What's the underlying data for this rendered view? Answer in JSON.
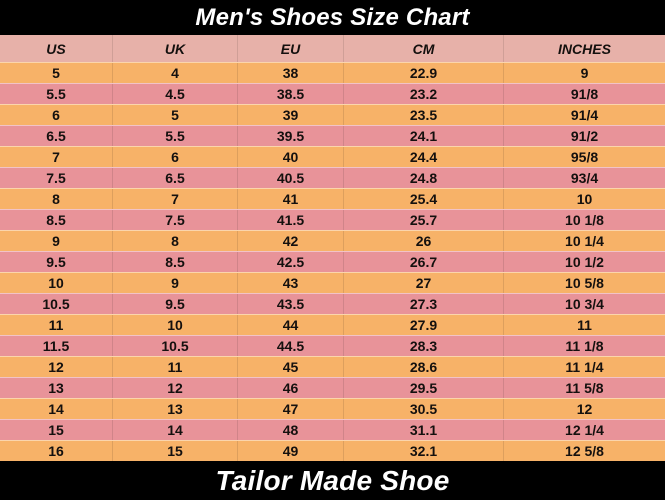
{
  "title": {
    "text": "Men's Shoes Size Chart"
  },
  "footer": {
    "text": "Tailor Made Shoe"
  },
  "colors": {
    "bar_bg": "#000000",
    "bar_text": "#ffffff",
    "header_row_bg": "#e7b1a9",
    "orange_row": "#f7b268",
    "pink_row": "#e89399",
    "cell_text": "#14100e"
  },
  "table": {
    "columns": [
      "US",
      "UK",
      "EU",
      "CM",
      "INCHES"
    ],
    "rows": [
      [
        "5",
        "4",
        "38",
        "22.9",
        "9"
      ],
      [
        "5.5",
        "4.5",
        "38.5",
        "23.2",
        "91/8"
      ],
      [
        "6",
        "5",
        "39",
        "23.5",
        "91/4"
      ],
      [
        "6.5",
        "5.5",
        "39.5",
        "24.1",
        "91/2"
      ],
      [
        "7",
        "6",
        "40",
        "24.4",
        "95/8"
      ],
      [
        "7.5",
        "6.5",
        "40.5",
        "24.8",
        "93/4"
      ],
      [
        "8",
        "7",
        "41",
        "25.4",
        "10"
      ],
      [
        "8.5",
        "7.5",
        "41.5",
        "25.7",
        "10 1/8"
      ],
      [
        "9",
        "8",
        "42",
        "26",
        "10 1/4"
      ],
      [
        "9.5",
        "8.5",
        "42.5",
        "26.7",
        "10 1/2"
      ],
      [
        "10",
        "9",
        "43",
        "27",
        "10 5/8"
      ],
      [
        "10.5",
        "9.5",
        "43.5",
        "27.3",
        "10 3/4"
      ],
      [
        "11",
        "10",
        "44",
        "27.9",
        "11"
      ],
      [
        "11.5",
        "10.5",
        "44.5",
        "28.3",
        "11 1/8"
      ],
      [
        "12",
        "11",
        "45",
        "28.6",
        "11 1/4"
      ],
      [
        "13",
        "12",
        "46",
        "29.5",
        "11 5/8"
      ],
      [
        "14",
        "13",
        "47",
        "30.5",
        "12"
      ],
      [
        "15",
        "14",
        "48",
        "31.1",
        "12 1/4"
      ],
      [
        "16",
        "15",
        "49",
        "32.1",
        "12 5/8"
      ]
    ]
  }
}
